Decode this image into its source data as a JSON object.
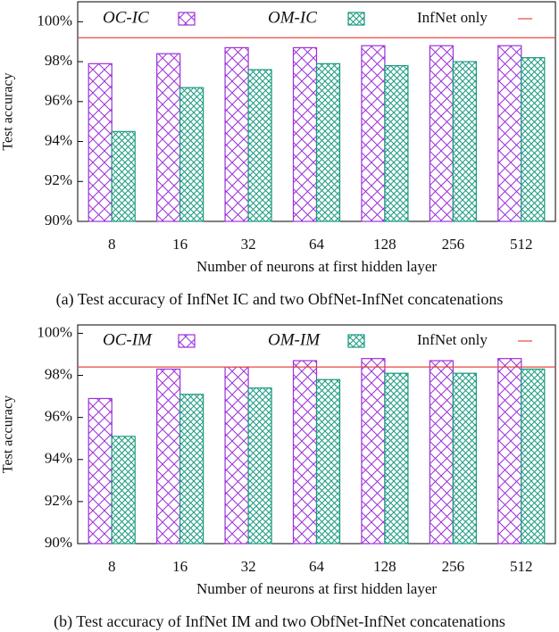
{
  "chart_data": [
    {
      "type": "bar",
      "caption": "(a) Test accuracy of InfNet IC and two ObfNet-InfNet concatenations",
      "x_label": "Number of neurons at first hidden layer",
      "y_label": "Test accuracy",
      "categories": [
        "8",
        "16",
        "32",
        "64",
        "128",
        "256",
        "512"
      ],
      "series": [
        {
          "name": "OC-IC",
          "color": "#9b30d9",
          "values": [
            97.9,
            98.4,
            98.7,
            98.7,
            98.8,
            98.8,
            98.8
          ]
        },
        {
          "name": "OM-IC",
          "color": "#1a9a80",
          "values": [
            94.5,
            96.7,
            97.6,
            97.9,
            97.8,
            98.0,
            98.2
          ]
        }
      ],
      "reference_line": {
        "name": "InfNet only",
        "value": 99.2,
        "color": "#e8483f"
      },
      "ylim": [
        90,
        101
      ],
      "yticks": [
        {
          "value": 90,
          "label": "90%"
        },
        {
          "value": 92,
          "label": "92%"
        },
        {
          "value": 94,
          "label": "94%"
        },
        {
          "value": 96,
          "label": "96%"
        },
        {
          "value": 98,
          "label": "98%"
        },
        {
          "value": 100,
          "label": "100%"
        }
      ]
    },
    {
      "type": "bar",
      "caption": "(b) Test accuracy of InfNet IM and two ObfNet-InfNet concatenations",
      "x_label": "Number of neurons at first hidden layer",
      "y_label": "Test accuracy",
      "categories": [
        "8",
        "16",
        "32",
        "64",
        "128",
        "256",
        "512"
      ],
      "series": [
        {
          "name": "OC-IM",
          "color": "#9b30d9",
          "values": [
            96.9,
            98.3,
            98.4,
            98.7,
            98.8,
            98.7,
            98.8
          ]
        },
        {
          "name": "OM-IM",
          "color": "#1a9a80",
          "values": [
            95.1,
            97.1,
            97.4,
            97.8,
            98.1,
            98.1,
            98.3
          ]
        }
      ],
      "reference_line": {
        "name": "InfNet only",
        "value": 98.4,
        "color": "#e8483f"
      },
      "ylim": [
        90,
        100.4
      ],
      "yticks": [
        {
          "value": 90,
          "label": "90%"
        },
        {
          "value": 92,
          "label": "92%"
        },
        {
          "value": 94,
          "label": "94%"
        },
        {
          "value": 96,
          "label": "96%"
        },
        {
          "value": 98,
          "label": "98%"
        },
        {
          "value": 100,
          "label": "100%"
        }
      ]
    }
  ]
}
